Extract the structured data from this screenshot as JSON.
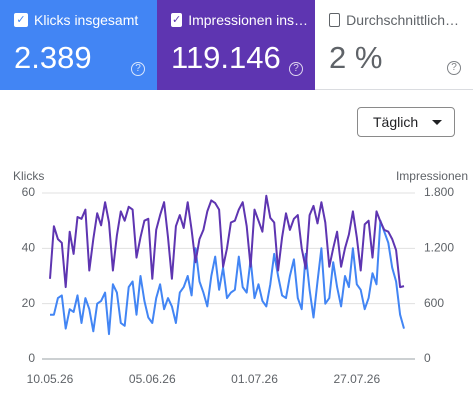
{
  "cards": [
    {
      "label": "Klicks insgesamt",
      "value": "2.389",
      "checked": true,
      "color": "#4285f4"
    },
    {
      "label": "Impressionen ins…",
      "value": "119.146",
      "checked": true,
      "color": "#5e35b1"
    },
    {
      "label": "Durchschnittlich…",
      "value": "2 %",
      "checked": false,
      "color": "#ffffff"
    }
  ],
  "dropdown": "Täglich",
  "chart_data": {
    "type": "line",
    "categories": [
      "10.05.26",
      null,
      null,
      null,
      null,
      null,
      null,
      null,
      null,
      null,
      null,
      null,
      null,
      null,
      null,
      null,
      null,
      null,
      null,
      null,
      null,
      null,
      null,
      null,
      null,
      null,
      "05.06.26",
      null,
      null,
      null,
      null,
      null,
      null,
      null,
      null,
      null,
      null,
      null,
      null,
      null,
      null,
      null,
      null,
      null,
      null,
      null,
      null,
      null,
      null,
      null,
      null,
      null,
      "01.07.26",
      null,
      null,
      null,
      null,
      null,
      null,
      null,
      null,
      null,
      null,
      null,
      null,
      null,
      null,
      null,
      null,
      null,
      null,
      null,
      null,
      null,
      null,
      null,
      null,
      null,
      "27.07.26",
      null,
      null,
      null,
      null,
      null,
      null,
      null,
      null,
      null,
      null,
      null,
      null
    ],
    "y_label": "Klicks",
    "y2_label": "Impressionen",
    "ylim": [
      0,
      60
    ],
    "yticks": [
      0,
      20,
      40,
      60
    ],
    "y2lim": [
      0,
      1800
    ],
    "y2ticks": [
      0,
      600,
      {
        "value": 1200,
        "label": "1.200"
      },
      {
        "value": 1800,
        "label": "1.800"
      }
    ],
    "grid": true,
    "series": [
      {
        "name": "Klicks",
        "color": "#4285f4",
        "values": [
          16,
          16,
          22,
          23,
          11,
          18,
          17,
          23,
          13,
          22,
          18,
          10,
          20,
          21,
          24,
          9,
          27,
          24,
          13,
          12,
          26,
          28,
          16,
          30,
          21,
          15,
          13,
          22,
          27,
          18,
          22,
          19,
          13,
          24,
          26,
          30,
          23,
          40,
          28,
          24,
          19,
          30,
          37,
          25,
          33,
          22,
          24,
          25,
          37,
          26,
          24,
          36,
          22,
          27,
          21,
          19,
          27,
          38,
          30,
          23,
          22,
          30,
          36,
          22,
          18,
          38,
          25,
          15,
          28,
          40,
          20,
          22,
          35,
          26,
          19,
          30,
          26,
          40,
          27,
          25,
          18,
          22,
          31,
          27,
          50,
          46,
          42,
          33,
          28,
          16,
          11
        ]
      },
      {
        "name": "Impressionen",
        "color": "#5e35b1",
        "axis": "y2",
        "values": [
          870,
          1440,
          1300,
          1260,
          780,
          1380,
          1140,
          1540,
          1520,
          1620,
          960,
          1300,
          1580,
          1450,
          1700,
          1480,
          960,
          1340,
          1600,
          1500,
          1650,
          1620,
          1100,
          1320,
          1500,
          1520,
          870,
          1400,
          1560,
          1700,
          1320,
          870,
          1440,
          1560,
          1420,
          1700,
          1400,
          1050,
          1300,
          1400,
          1600,
          1720,
          1690,
          1620,
          1000,
          1200,
          1480,
          1500,
          1620,
          1700,
          1440,
          1000,
          1620,
          1500,
          1380,
          1770,
          1530,
          1480,
          960,
          1320,
          1580,
          1400,
          1520,
          1560,
          1200,
          980,
          1560,
          1660,
          1470,
          1700,
          1480,
          1000,
          1200,
          1380,
          1000,
          1200,
          1350,
          1600,
          1320,
          960,
          1460,
          1500,
          1100,
          1600,
          1490,
          1400,
          1380,
          1300,
          1180,
          780,
          790
        ]
      }
    ]
  }
}
